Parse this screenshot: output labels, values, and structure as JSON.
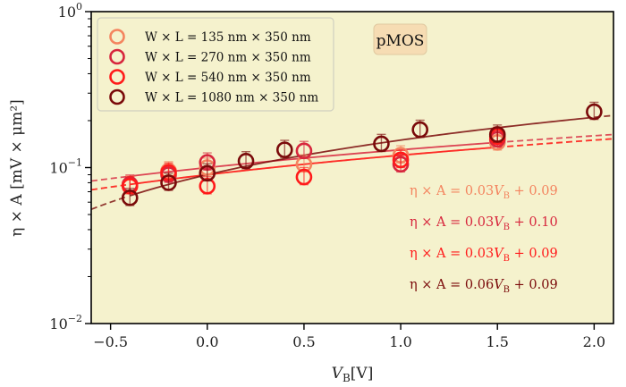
{
  "chart_data": {
    "type": "scatter",
    "title": "",
    "annotation": "pMOS",
    "xlabel": "V_B [V]",
    "xlabel_main": "V",
    "xlabel_sub": "B",
    "xlabel_unit": "[V]",
    "ylabel": "η × A [mV × μm²]",
    "xlim": [
      -0.6,
      2.1
    ],
    "ylim": [
      0.01,
      1
    ],
    "yscale": "log",
    "xticks": [
      -0.5,
      0.0,
      0.5,
      1.0,
      1.5,
      2.0
    ],
    "xtick_labels": [
      "−0.5",
      "0.0",
      "0.5",
      "1.0",
      "1.5",
      "2.0"
    ],
    "yticks": [
      {
        "base": "10",
        "exp": "0",
        "value": 1
      },
      {
        "base": "10",
        "exp": "−1",
        "value": 0.1
      },
      {
        "base": "10",
        "exp": "−2",
        "value": 0.01
      }
    ],
    "legend_position": "top-left",
    "series": [
      {
        "name": "W × L = 135 nm × 350 nm",
        "color": "#f4845f",
        "x": [
          -0.4,
          -0.2,
          0.0,
          0.5,
          1.0,
          1.5
        ],
        "y": [
          0.077,
          0.095,
          0.1,
          0.105,
          0.12,
          0.145
        ],
        "fit": {
          "slope": 0.03,
          "intercept": 0.09
        },
        "equation": "η × A = 0.03V_B + 0.09"
      },
      {
        "name": "W × L = 270 nm × 350 nm",
        "color": "#d7263d",
        "x": [
          -0.4,
          -0.2,
          0.0,
          0.5,
          1.0,
          1.5
        ],
        "y": [
          0.078,
          0.09,
          0.108,
          0.128,
          0.105,
          0.152
        ],
        "fit": {
          "slope": 0.03,
          "intercept": 0.1
        },
        "equation": "η × A = 0.03V_B + 0.10"
      },
      {
        "name": "W × L = 540 nm × 350 nm",
        "color": "#ff1a1a",
        "x": [
          -0.4,
          -0.2,
          0.0,
          0.5,
          1.0,
          1.5
        ],
        "y": [
          0.076,
          0.093,
          0.076,
          0.087,
          0.112,
          0.158
        ],
        "fit": {
          "slope": 0.03,
          "intercept": 0.09
        },
        "equation": "η × A = 0.03V_B + 0.09"
      },
      {
        "name": "W × L = 1080 nm × 350 nm",
        "color": "#7a0a0a",
        "x": [
          -0.4,
          -0.2,
          0.0,
          0.2,
          0.4,
          0.9,
          1.1,
          1.5,
          2.0
        ],
        "y": [
          0.064,
          0.08,
          0.092,
          0.11,
          0.13,
          0.142,
          0.175,
          0.163,
          0.228
        ],
        "fit": {
          "slope": 0.06,
          "intercept": 0.09
        },
        "equation": "η × A = 0.06V_B + 0.09"
      }
    ],
    "background_color": "#f5f2cd",
    "annotation_color": "#f6dcb3"
  }
}
